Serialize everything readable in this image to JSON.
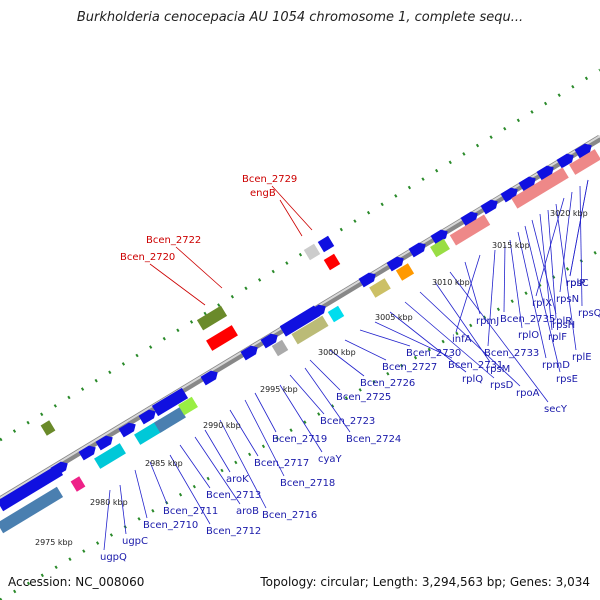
{
  "header": {
    "title": "Burkholderia cenocepacia AU 1054 chromosome 1, complete sequ..."
  },
  "footer": {
    "accession": "Accession: NC_008060",
    "topology": "Topology: circular; Length: 3,294,563 bp; Genes: 3,034"
  },
  "colors": {
    "gene": "#1010e0",
    "red_gene": "#ff0000",
    "backbone": "#999999",
    "dots": "#2a8a2a",
    "leader": "#2222cc",
    "leader_red": "#cc0000"
  },
  "ticks": [
    "2975 kbp",
    "2980 kbp",
    "2985 kbp",
    "2990 kbp",
    "2995 kbp",
    "3000 kbp",
    "3005 kbp",
    "3010 kbp",
    "3015 kbp",
    "3020 kbp"
  ],
  "labels_blue": [
    "ugpQ",
    "ugpC",
    "Bcen_2710",
    "Bcen_2711",
    "Bcen_2712",
    "Bcen_2713",
    "aroB",
    "aroK",
    "Bcen_2716",
    "Bcen_2717",
    "Bcen_2718",
    "Bcen_2719",
    "cyaY",
    "Bcen_2723",
    "Bcen_2724",
    "Bcen_2725",
    "Bcen_2726",
    "Bcen_2727",
    "Bcen_2730",
    "Bcen_2731",
    "rplQ",
    "rpsD",
    "rpoA",
    "rpsM",
    "secY",
    "rpmJ",
    "infA",
    "Bcen_2733",
    "Bcen_2735",
    "rplO",
    "rpmD",
    "rpsE",
    "rplR",
    "rplF",
    "rpsH",
    "rplE",
    "rplX",
    "rpsN",
    "rpsQ",
    "rplP",
    "rpsC"
  ],
  "labels_red": [
    "Bcen_2729",
    "engB",
    "Bcen_2722",
    "Bcen_2720"
  ]
}
